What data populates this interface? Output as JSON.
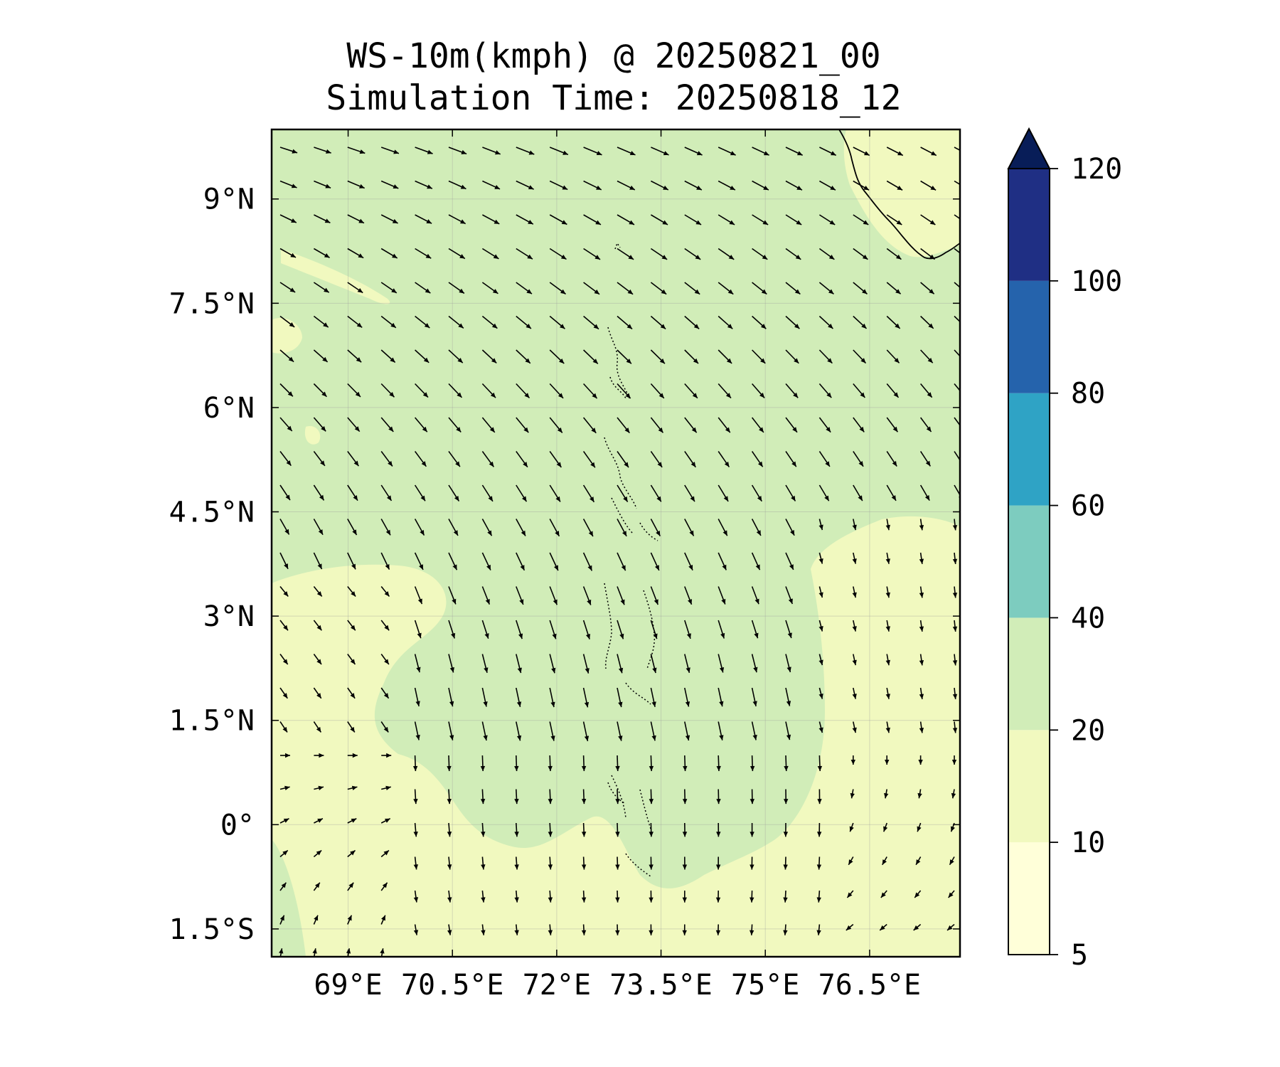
{
  "title": {
    "line1": "WS-10m(kmph) @ 20250821_00",
    "line2": "Simulation Time: 20250818_12"
  },
  "map": {
    "lon_range": [
      67.9,
      77.8
    ],
    "lat_range": [
      -1.9,
      10.0
    ],
    "lon_ticks": [
      {
        "value": 69.0,
        "label": "69°E"
      },
      {
        "value": 70.5,
        "label": "70.5°E"
      },
      {
        "value": 72.0,
        "label": "72°E"
      },
      {
        "value": 73.5,
        "label": "73.5°E"
      },
      {
        "value": 75.0,
        "label": "75°E"
      },
      {
        "value": 76.5,
        "label": "76.5°E"
      }
    ],
    "lat_ticks": [
      {
        "value": 9.0,
        "label": "9°N"
      },
      {
        "value": 7.5,
        "label": "7.5°N"
      },
      {
        "value": 6.0,
        "label": "6°N"
      },
      {
        "value": 4.5,
        "label": "4.5°N"
      },
      {
        "value": 3.0,
        "label": "3°N"
      },
      {
        "value": 1.5,
        "label": "1.5°N"
      },
      {
        "value": 0.0,
        "label": "0°"
      },
      {
        "value": -1.5,
        "label": "1.5°S"
      }
    ],
    "gridlines": true,
    "background_level": "20-40",
    "wind_vectors": "quiver"
  },
  "colorbar": {
    "extend": "max",
    "extend_color": "#081d58",
    "bins": [
      {
        "from": 5,
        "to": 10,
        "color": "#ffffd9"
      },
      {
        "from": 10,
        "to": 20,
        "color": "#f1f9bf"
      },
      {
        "from": 20,
        "to": 40,
        "color": "#d1edb8"
      },
      {
        "from": 40,
        "to": 60,
        "color": "#7dccbf"
      },
      {
        "from": 60,
        "to": 80,
        "color": "#2fa3c5"
      },
      {
        "from": 80,
        "to": 100,
        "color": "#2563ac"
      },
      {
        "from": 100,
        "to": 120,
        "color": "#1f2f84"
      }
    ],
    "tick_labels": [
      "5",
      "10",
      "20",
      "40",
      "60",
      "80",
      "100",
      "120"
    ]
  }
}
